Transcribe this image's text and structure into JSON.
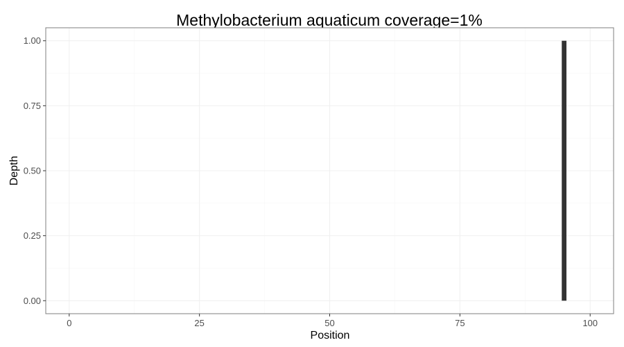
{
  "chart_data": {
    "type": "bar",
    "title": "Methylobacterium aquaticum coverage=1%",
    "xlabel": "Position",
    "ylabel": "Depth",
    "xlim": [
      -4.5,
      104.5
    ],
    "ylim": [
      -0.05,
      1.05
    ],
    "x_ticks": [
      0,
      25,
      50,
      75,
      100
    ],
    "x_tick_labels": [
      "0",
      "25",
      "50",
      "75",
      "100"
    ],
    "y_ticks": [
      0,
      0.25,
      0.5,
      0.75,
      1.0
    ],
    "y_tick_labels": [
      "0.00",
      "0.25",
      "0.50",
      "0.75",
      "1.00"
    ],
    "bar_width": 0.9,
    "points": [
      {
        "x": 95,
        "y": 1.0
      }
    ],
    "grid": true,
    "legend": "none",
    "colors": {
      "bar": "#333333",
      "panel_border": "#7f7f7f",
      "grid_major": "#f0f0f0",
      "grid_minor": "#f7f7f7",
      "tick_label": "#4d4d4d",
      "text": "#000000"
    }
  }
}
